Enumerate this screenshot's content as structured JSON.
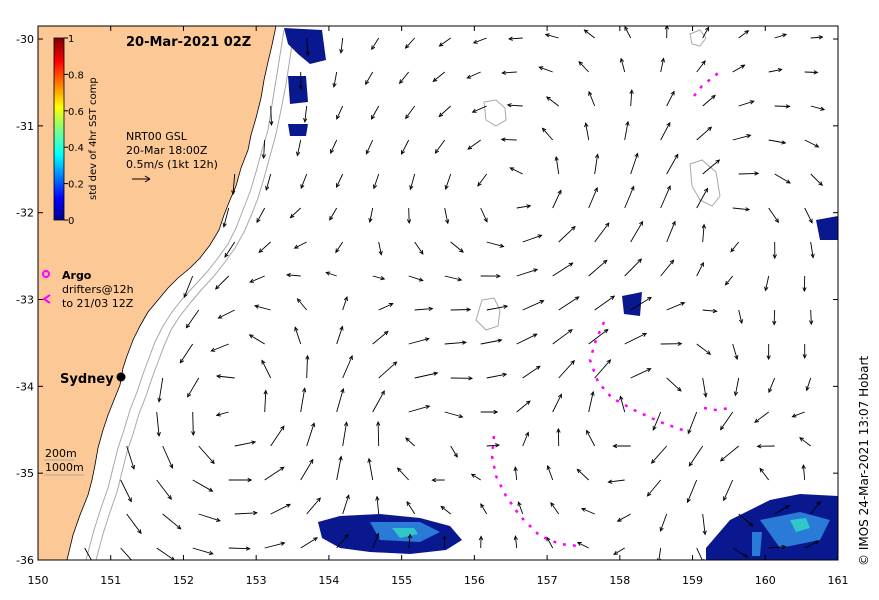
{
  "map": {
    "date_title": "20-Mar-2021 02Z",
    "lon_ticks": [
      "150",
      "151",
      "152",
      "153",
      "154",
      "155",
      "156",
      "157",
      "158",
      "159",
      "160",
      "161"
    ],
    "lat_ticks": [
      "-30",
      "-31",
      "-32",
      "-33",
      "-34",
      "-35",
      "-36"
    ],
    "lon_range": [
      150,
      161
    ],
    "lat_range": [
      -36,
      -29.85
    ]
  },
  "colorbar": {
    "label": "std dev of 4hr SST comp",
    "ticks": [
      "1",
      "0.8",
      "0.6",
      "0.4",
      "0.2",
      "0"
    ],
    "min": 0,
    "max": 1
  },
  "current_legend": {
    "source": "NRT00 GSL",
    "time": "20-Mar 18:00Z",
    "scale": "0.5m/s (1kt 12h)"
  },
  "argo_legend": {
    "argo_label": "Argo",
    "drifters_line1": "drifters@12h",
    "drifters_line2": "to 21/03 12Z",
    "marker_color": "#ff00ff"
  },
  "city": {
    "name": "Sydney",
    "lon": 151.2,
    "lat": -33.86
  },
  "depth_legend": {
    "contour_200": "200m",
    "contour_1000": "1000m"
  },
  "credit": "© IMOS 24-Mar-2021 13:07 Hobart",
  "colors": {
    "land": "#fcc896",
    "coast": "#000000",
    "isobath": "#a8a8a8",
    "vectors": "#000000",
    "drifters": "#ff00ff",
    "sst_low": "#0a1890"
  }
}
